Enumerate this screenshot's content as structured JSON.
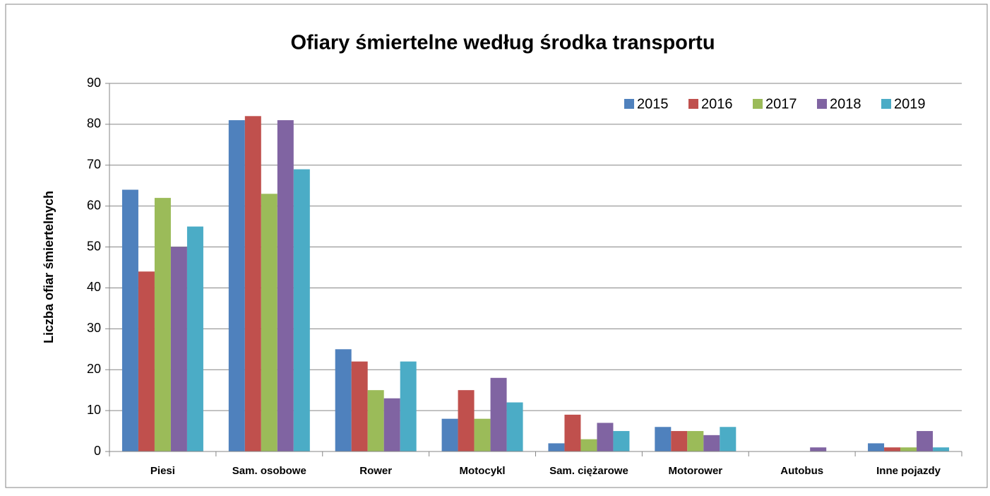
{
  "chart_data": {
    "type": "bar",
    "title": "Ofiary śmiertelne według środka transportu",
    "y_label": "Liczba ofiar śmiertelnych",
    "categories": [
      "Piesi",
      "Sam. osobowe",
      "Rower",
      "Motocykl",
      "Sam. ciężarowe",
      "Motorower",
      "Autobus",
      "Inne pojazdy"
    ],
    "series": [
      {
        "name": "2015",
        "color": "#4f81bd",
        "values": [
          64,
          81,
          25,
          8,
          2,
          6,
          0,
          2
        ]
      },
      {
        "name": "2016",
        "color": "#c0504d",
        "values": [
          44,
          82,
          22,
          15,
          9,
          5,
          0,
          1
        ]
      },
      {
        "name": "2017",
        "color": "#9bbb59",
        "values": [
          62,
          63,
          15,
          8,
          3,
          5,
          0,
          1
        ]
      },
      {
        "name": "2018",
        "color": "#8064a2",
        "values": [
          50,
          81,
          13,
          18,
          7,
          4,
          1,
          5
        ]
      },
      {
        "name": "2019",
        "color": "#4bacc6",
        "values": [
          55,
          69,
          22,
          12,
          5,
          6,
          0,
          1
        ]
      }
    ],
    "ylim": [
      0,
      90
    ],
    "yticks": [
      0,
      10,
      20,
      30,
      40,
      50,
      60,
      70,
      80,
      90
    ],
    "grid": true,
    "legend": "top-right"
  }
}
